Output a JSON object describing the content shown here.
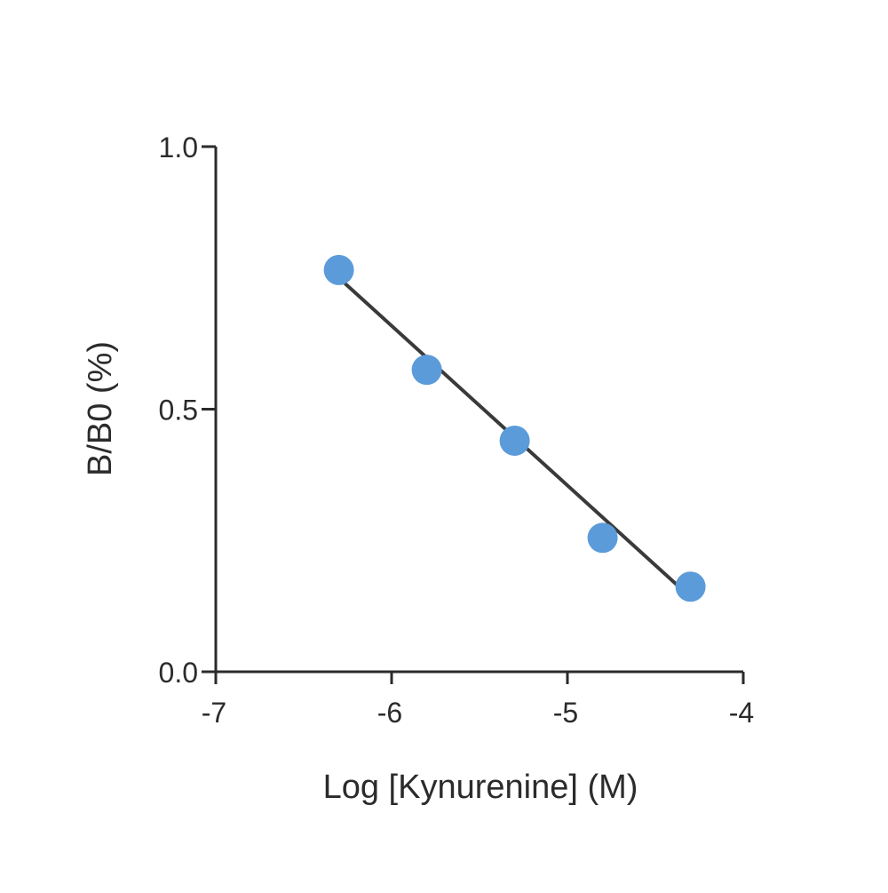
{
  "chart_data": {
    "type": "scatter",
    "xlabel": "Log [Kynurenine] (M)",
    "ylabel": "B/B0 (%)",
    "xlim": [
      -7,
      -4
    ],
    "ylim": [
      0.0,
      1.0
    ],
    "x_ticks": [
      -7,
      -6,
      -5,
      -4
    ],
    "x_tick_labels": [
      "-7",
      "-6",
      "-5",
      "-4"
    ],
    "y_ticks": [
      0.0,
      0.5,
      1.0
    ],
    "y_tick_labels": [
      "0.0",
      "0.5",
      "1.0"
    ],
    "grid": false,
    "series": [
      {
        "points": [
          {
            "x": -6.3,
            "y": 0.765
          },
          {
            "x": -5.8,
            "y": 0.575
          },
          {
            "x": -5.3,
            "y": 0.44
          },
          {
            "x": -4.8,
            "y": 0.255
          },
          {
            "x": -4.3,
            "y": 0.162
          }
        ],
        "color": "#5b9bd9"
      }
    ],
    "fit_line": {
      "x": [
        -6.3,
        -4.3
      ],
      "y": [
        0.75,
        0.142
      ],
      "color": "#3a3a3a"
    }
  }
}
